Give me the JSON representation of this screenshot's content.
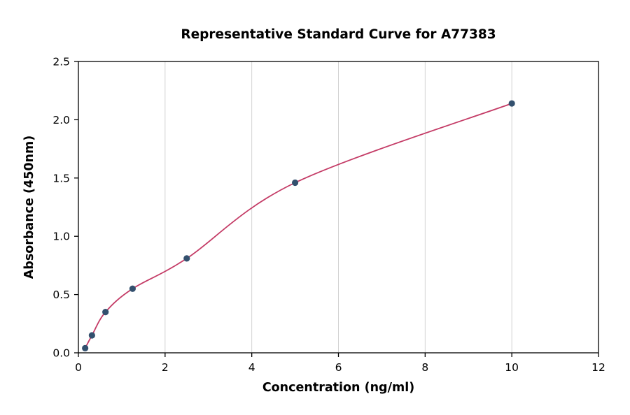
{
  "page": {
    "background": "#ffffff"
  },
  "chart_data": {
    "type": "scatter",
    "subtype": "scatter-points-with-fitted-curve",
    "title": "Representative Standard Curve for A77383",
    "xlabel": "Concentration (ng/ml)",
    "ylabel": "Absorbance (450nm)",
    "xlim": [
      0,
      12
    ],
    "ylim": [
      0,
      2.5
    ],
    "grid": "vertical-only",
    "legend": "none",
    "xticks": [
      {
        "value": 0,
        "label": "0"
      },
      {
        "value": 2,
        "label": "2"
      },
      {
        "value": 4,
        "label": "4"
      },
      {
        "value": 6,
        "label": "6"
      },
      {
        "value": 8,
        "label": "8"
      },
      {
        "value": 10,
        "label": "10"
      },
      {
        "value": 12,
        "label": "12"
      }
    ],
    "yticks": [
      {
        "value": 0,
        "label": "0.0"
      },
      {
        "value": 0.5,
        "label": "0.5"
      },
      {
        "value": 1.0,
        "label": "1.0"
      },
      {
        "value": 1.5,
        "label": "1.5"
      },
      {
        "value": 2.0,
        "label": "2.0"
      },
      {
        "value": 2.5,
        "label": "2.5"
      }
    ],
    "points": [
      {
        "x": 0.156,
        "y": 0.04
      },
      {
        "x": 0.313,
        "y": 0.15
      },
      {
        "x": 0.625,
        "y": 0.35
      },
      {
        "x": 1.25,
        "y": 0.55
      },
      {
        "x": 2.5,
        "y": 0.81
      },
      {
        "x": 5,
        "y": 1.46
      },
      {
        "x": 10,
        "y": 2.14
      }
    ],
    "colors": {
      "curve": "#c43b66",
      "point": "#33506e",
      "grid": "#d2d2d2",
      "frame": "#000000",
      "text": "#000000",
      "background": "#ffffff"
    }
  }
}
